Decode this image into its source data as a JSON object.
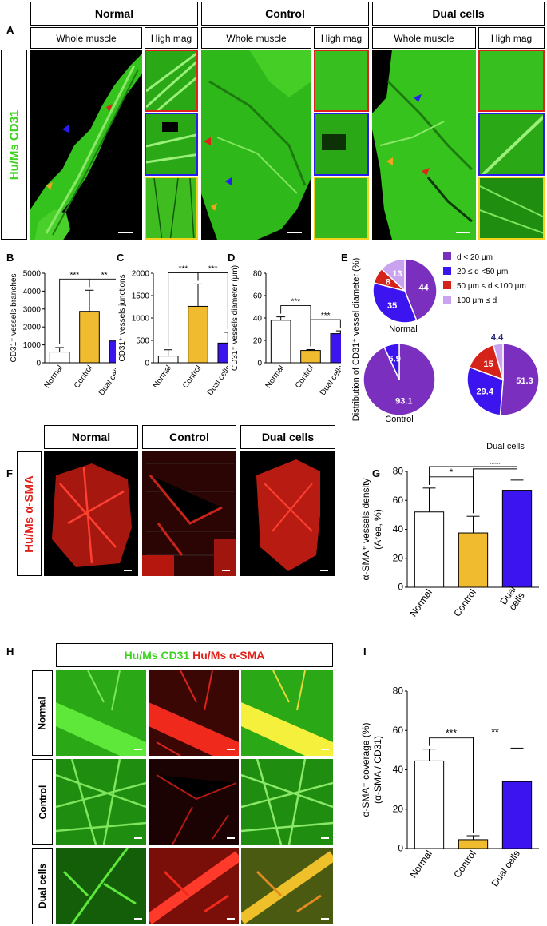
{
  "panelA": {
    "letter": "A",
    "groups": [
      "Normal",
      "Control",
      "Dual cells"
    ],
    "subheaders": [
      "Whole muscle",
      "High mag"
    ],
    "stain_label": "Hu/Ms CD31"
  },
  "panelF": {
    "letter": "F",
    "groups": [
      "Normal",
      "Control",
      "Dual cells"
    ],
    "stain_label": "Hu/Ms α-SMA"
  },
  "panelH": {
    "letter": "H",
    "title_green": "Hu/Ms CD31",
    "title_red": "Hu/Ms α-SMA",
    "rows": [
      "Normal",
      "Control",
      "Dual cells"
    ]
  },
  "colors": {
    "normal": "#ffffff",
    "control": "#f0bb2e",
    "dual": "#3b14f0",
    "green": "#3cd21e",
    "red": "#e0231a"
  },
  "chart_data": [
    {
      "id": "B",
      "type": "bar",
      "categories": [
        "Normal",
        "Control",
        "Dual cells"
      ],
      "values": [
        600,
        2870,
        1220
      ],
      "errors": [
        250,
        1180,
        500
      ],
      "ylabel": "CD31⁺ vessels branches",
      "ylim": [
        0,
        5000
      ],
      "yticks": [
        0,
        1000,
        2000,
        3000,
        4000,
        5000
      ],
      "significance": [
        {
          "from": 0,
          "to": 1,
          "label": "***"
        },
        {
          "from": 1,
          "to": 2,
          "label": "**"
        }
      ]
    },
    {
      "id": "C",
      "type": "bar",
      "categories": [
        "Normal",
        "Control",
        "Dual cells"
      ],
      "values": [
        150,
        1260,
        440
      ],
      "errors": [
        140,
        500,
        240
      ],
      "ylabel": "CD31⁺ vessels junctions",
      "ylim": [
        0,
        2000
      ],
      "yticks": [
        0,
        500,
        1000,
        1500,
        2000
      ],
      "significance": [
        {
          "from": 0,
          "to": 1,
          "label": "***"
        },
        {
          "from": 1,
          "to": 2,
          "label": "***"
        }
      ]
    },
    {
      "id": "D",
      "type": "bar",
      "categories": [
        "Normal",
        "Control",
        "Dual cells"
      ],
      "values": [
        38,
        11,
        26
      ],
      "errors": [
        3,
        0.8,
        2.5
      ],
      "ylabel": "CD31⁺ vessels diameter (μm)",
      "ylim": [
        0,
        80
      ],
      "yticks": [
        0,
        20,
        40,
        60,
        80
      ],
      "significance": [
        {
          "from": 0,
          "to": 1,
          "label": "***"
        },
        {
          "from": 1,
          "to": 2,
          "label": "***"
        }
      ]
    },
    {
      "id": "E",
      "type": "pie",
      "ylabel": "Distribution of CD31⁺ vessel diameter (%)",
      "legend": [
        "d < 20 μm",
        "20 ≤ d <50 μm",
        "50 μm ≤ d <100 μm",
        "100 μm ≤ d"
      ],
      "legend_colors": [
        "#7b2fbe",
        "#3b14f0",
        "#d6231a",
        "#c9a3ef"
      ],
      "pies": [
        {
          "name": "Normal",
          "values": [
            44,
            35,
            8,
            13
          ]
        },
        {
          "name": "Control",
          "values": [
            93.1,
            6.9,
            0,
            0
          ]
        },
        {
          "name": "Dual cells",
          "values": [
            51.3,
            29.4,
            15,
            4.4
          ]
        }
      ]
    },
    {
      "id": "G",
      "type": "bar",
      "categories": [
        "Normal",
        "Control",
        "Dual cells"
      ],
      "values": [
        52,
        37.5,
        67
      ],
      "errors": [
        16.5,
        11.5,
        7
      ],
      "ylabel": "α-SMA⁺ vessels density (Area, %)",
      "ylim": [
        0,
        80
      ],
      "yticks": [
        0,
        20,
        40,
        60,
        80
      ],
      "significance": [
        {
          "from": 0,
          "to": 1,
          "label": "*"
        },
        {
          "from": 1,
          "to": 2,
          "label": "***"
        },
        {
          "from": 0,
          "to": 2,
          "label": "*"
        }
      ]
    },
    {
      "id": "I",
      "type": "bar",
      "categories": [
        "Normal",
        "Control",
        "Dual cells"
      ],
      "values": [
        44.5,
        4.5,
        34
      ],
      "errors": [
        6,
        2,
        17
      ],
      "ylabel": "α-SMA⁺ coverage (%) (α-SMA / CD31)",
      "ylim": [
        0,
        80
      ],
      "yticks": [
        0,
        20,
        40,
        60,
        80
      ],
      "significance": [
        {
          "from": 0,
          "to": 1,
          "label": "***"
        },
        {
          "from": 1,
          "to": 2,
          "label": "**"
        }
      ]
    }
  ]
}
